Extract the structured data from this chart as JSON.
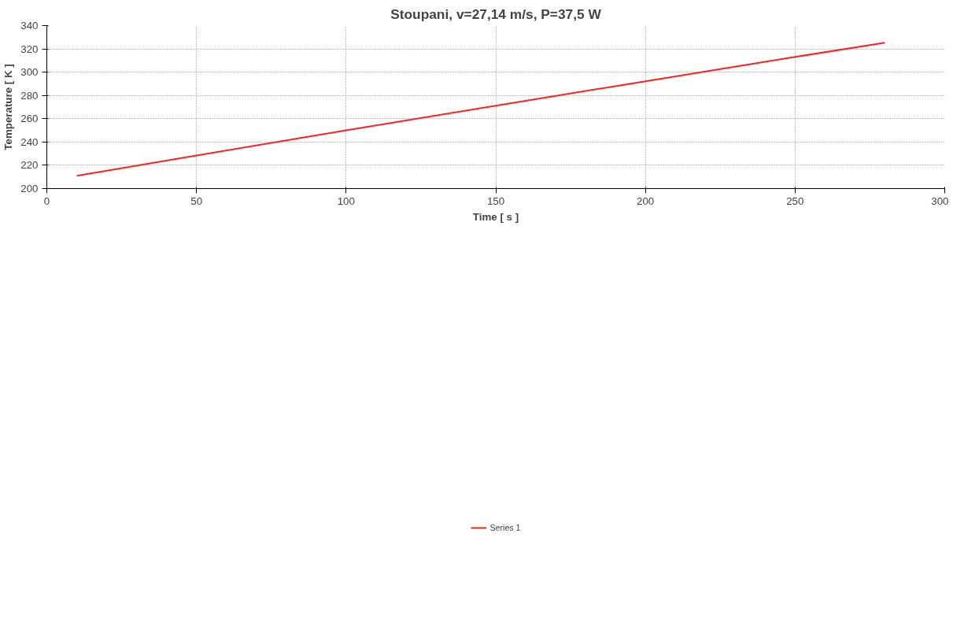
{
  "chart_data": {
    "type": "line",
    "title": "Stoupani, v=27,14 m/s, P=37,5 W",
    "xlabel": "Time [ s ]",
    "ylabel": "Temperature [ K ]",
    "x": [
      10,
      50,
      100,
      150,
      200,
      250,
      280
    ],
    "series": [
      {
        "name": "Series 1",
        "color": "#ff2020",
        "values": [
          211,
          228.4,
          250,
          271.2,
          292.2,
          313.1,
          325.3
        ]
      }
    ],
    "xlim": [
      0,
      300
    ],
    "xticks": [
      0,
      50,
      100,
      150,
      200,
      250,
      300
    ],
    "ylim": [
      200,
      340
    ],
    "yticks": [
      200,
      220,
      240,
      260,
      280,
      300,
      320,
      340
    ],
    "grid": true,
    "legend": "bottom",
    "marker": "none",
    "line_style": "solid"
  }
}
